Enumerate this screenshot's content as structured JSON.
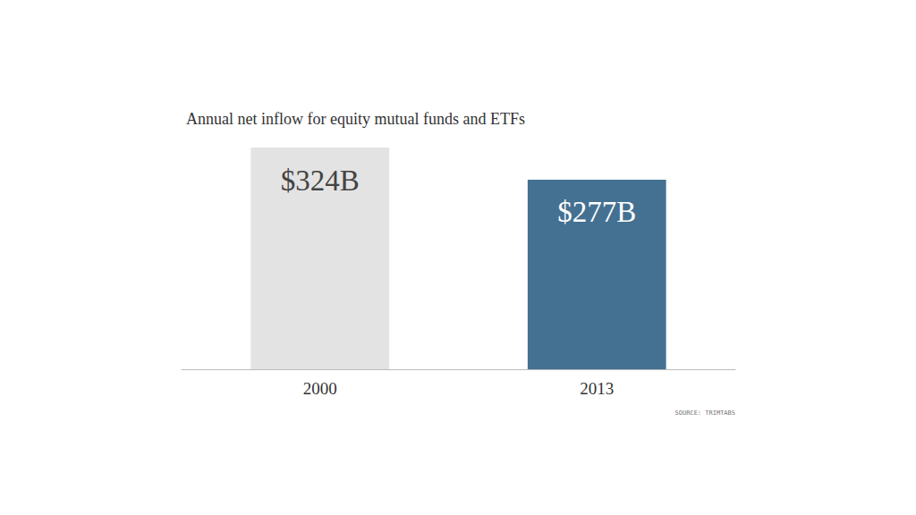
{
  "chart_data": {
    "type": "bar",
    "title": "Annual net inflow for equity mutual funds and ETFs",
    "categories": [
      "2000",
      "2013"
    ],
    "values": [
      324,
      277
    ],
    "value_labels": [
      "$324B",
      "$277B"
    ],
    "colors": [
      "#e3e3e3",
      "#447192"
    ],
    "ylim": [
      0,
      324
    ],
    "grid": false,
    "data_labels": true,
    "tick_labels": "x",
    "source": "SOURCE: TRIMTABS"
  }
}
